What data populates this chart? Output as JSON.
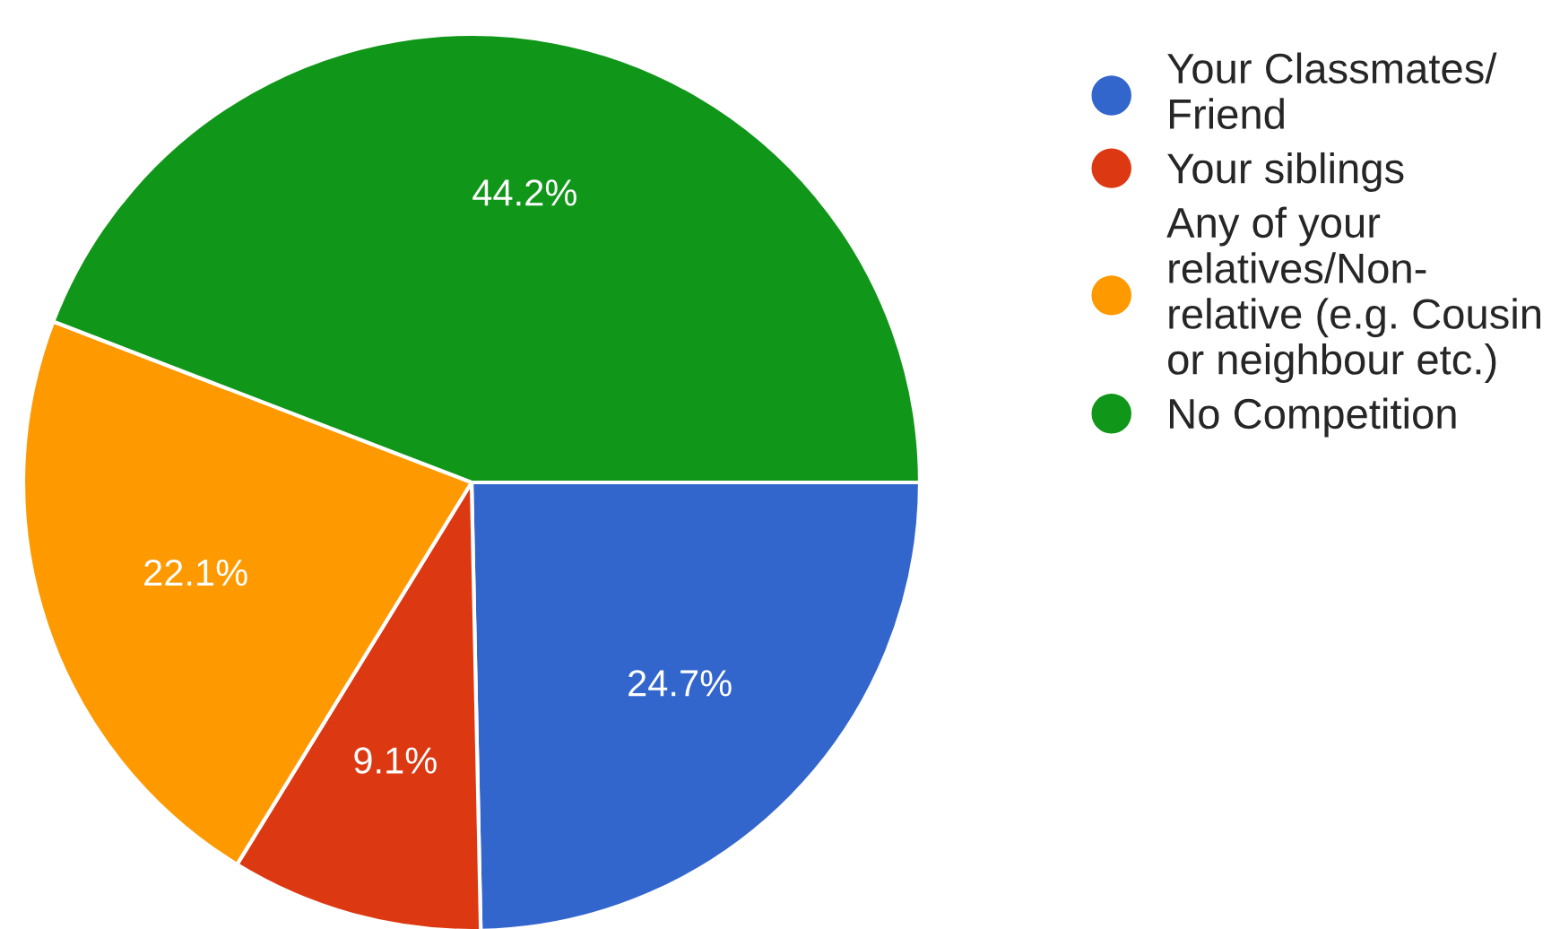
{
  "chart_data": {
    "type": "pie",
    "categories": [
      "Your Classmates/ Friend",
      "Your siblings",
      "Any of your relatives/Non-relative (e.g. Cousin or neighbour etc.)",
      "No Competition"
    ],
    "values": [
      24.7,
      9.1,
      22.1,
      44.2
    ],
    "colors": [
      "#3366cc",
      "#dc3912",
      "#ff9900",
      "#109618"
    ],
    "value_labels": [
      "24.7%",
      "9.1%",
      "22.1%",
      "44.2%"
    ],
    "legend": "right"
  }
}
